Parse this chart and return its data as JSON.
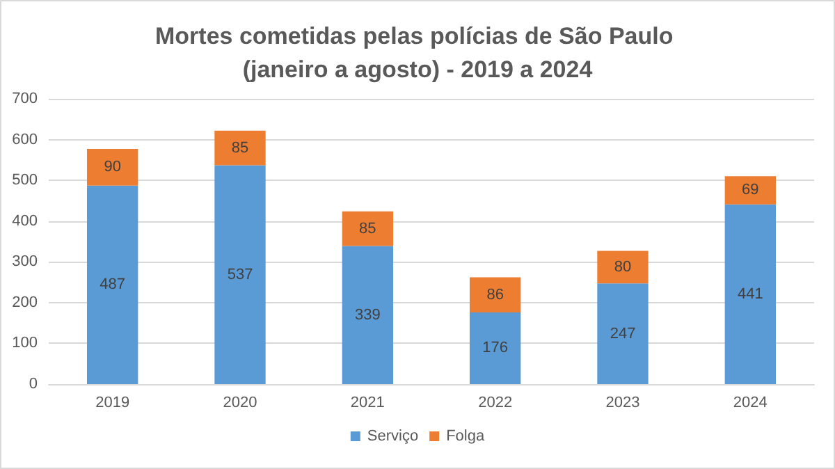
{
  "chart_data": {
    "type": "bar",
    "title": "Mortes cometidas pelas polícias de São Paulo (janeiro a agosto) - 2019 a 2024",
    "categories": [
      "2019",
      "2020",
      "2021",
      "2022",
      "2023",
      "2024"
    ],
    "series": [
      {
        "name": "Serviço",
        "color": "#5b9bd5",
        "values": [
          487,
          537,
          339,
          176,
          247,
          441
        ]
      },
      {
        "name": "Folga",
        "color": "#ed7d31",
        "values": [
          90,
          85,
          85,
          86,
          80,
          69
        ]
      }
    ],
    "stacked": true,
    "data_labels": true,
    "ylim": [
      0,
      700
    ],
    "yticks": [
      0,
      100,
      200,
      300,
      400,
      500,
      600,
      700
    ],
    "grid": "y",
    "legend": "bottom"
  }
}
